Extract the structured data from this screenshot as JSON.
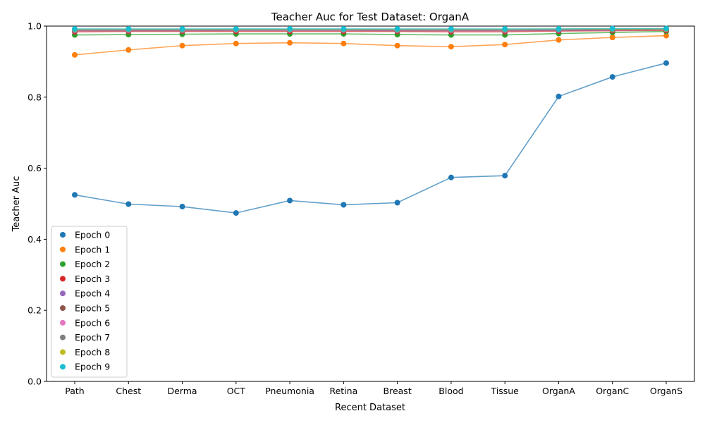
{
  "chart_data": {
    "type": "line",
    "title": "Teacher Auc for Test Dataset: OrganA",
    "xlabel": "Recent Dataset",
    "ylabel": "Teacher Auc",
    "ylim": [
      0.0,
      1.0
    ],
    "yticks": [
      "0.0",
      "0.2",
      "0.4",
      "0.6",
      "0.8",
      "1.0"
    ],
    "grid": false,
    "legend_position": "lower-left",
    "categories": [
      "Path",
      "Chest",
      "Derma",
      "OCT",
      "Pneumonia",
      "Retina",
      "Breast",
      "Blood",
      "Tissue",
      "OrganA",
      "OrganC",
      "OrganS"
    ],
    "series": [
      {
        "name": "Epoch 0",
        "color": "#1f77b4",
        "values": [
          0.525,
          0.499,
          0.492,
          0.474,
          0.509,
          0.497,
          0.503,
          0.574,
          0.579,
          0.802,
          0.857,
          0.896
        ]
      },
      {
        "name": "Epoch 1",
        "color": "#ff7f0e",
        "values": [
          0.919,
          0.933,
          0.945,
          0.951,
          0.953,
          0.951,
          0.945,
          0.942,
          0.948,
          0.961,
          0.968,
          0.973
        ]
      },
      {
        "name": "Epoch 2",
        "color": "#2ca02c",
        "values": [
          0.975,
          0.976,
          0.977,
          0.978,
          0.978,
          0.978,
          0.976,
          0.975,
          0.975,
          0.979,
          0.982,
          0.985
        ]
      },
      {
        "name": "Epoch 3",
        "color": "#d62728",
        "values": [
          0.984,
          0.985,
          0.985,
          0.985,
          0.985,
          0.985,
          0.985,
          0.984,
          0.984,
          0.986,
          0.987,
          0.988
        ]
      },
      {
        "name": "Epoch 4",
        "color": "#9467bd",
        "values": [
          0.987,
          0.987,
          0.987,
          0.988,
          0.988,
          0.988,
          0.987,
          0.987,
          0.987,
          0.988,
          0.989,
          0.99
        ]
      },
      {
        "name": "Epoch 5",
        "color": "#8c564b",
        "values": [
          0.988,
          0.988,
          0.988,
          0.989,
          0.989,
          0.989,
          0.988,
          0.988,
          0.988,
          0.989,
          0.99,
          0.99
        ]
      },
      {
        "name": "Epoch 6",
        "color": "#e377c2",
        "values": [
          0.989,
          0.989,
          0.989,
          0.99,
          0.99,
          0.99,
          0.989,
          0.989,
          0.989,
          0.99,
          0.991,
          0.991
        ]
      },
      {
        "name": "Epoch 7",
        "color": "#7f7f7f",
        "values": [
          0.99,
          0.99,
          0.99,
          0.991,
          0.991,
          0.991,
          0.99,
          0.99,
          0.99,
          0.991,
          0.991,
          0.992
        ]
      },
      {
        "name": "Epoch 8",
        "color": "#bcbd22",
        "values": [
          0.991,
          0.991,
          0.991,
          0.991,
          0.991,
          0.991,
          0.991,
          0.991,
          0.991,
          0.992,
          0.992,
          0.992
        ]
      },
      {
        "name": "Epoch 9",
        "color": "#17becf",
        "values": [
          0.992,
          0.992,
          0.992,
          0.992,
          0.992,
          0.992,
          0.992,
          0.992,
          0.992,
          0.992,
          0.993,
          0.993
        ]
      }
    ]
  }
}
